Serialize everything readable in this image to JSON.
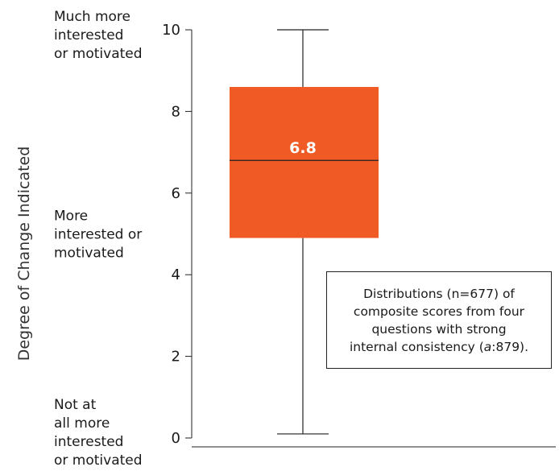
{
  "chart_data": {
    "type": "box",
    "ylabel": "Degree of Change Indicated",
    "ylim": [
      0,
      10
    ],
    "yticks": [
      "0",
      "2",
      "4",
      "6",
      "8",
      "10"
    ],
    "y_level_labels": [
      {
        "value": 10,
        "lines": [
          "Much more",
          "interested",
          "or motivated"
        ]
      },
      {
        "value": 5,
        "lines": [
          "More",
          "interested or",
          "motivated"
        ]
      },
      {
        "value": 0,
        "lines": [
          "Not at",
          "all more",
          "interested",
          "or motivated"
        ]
      }
    ],
    "box": {
      "min": 0.1,
      "q1": 4.9,
      "median": 6.8,
      "q3": 8.6,
      "max": 10.0,
      "median_label": "6.8",
      "color": "#f05a24"
    },
    "annotation": {
      "lines": [
        "Distributions (n=677) of",
        "composite scores from four",
        "questions with strong"
      ],
      "last_line_prefix": "internal consistency (",
      "last_line_italic": "a",
      "last_line_suffix": ":879)."
    }
  }
}
